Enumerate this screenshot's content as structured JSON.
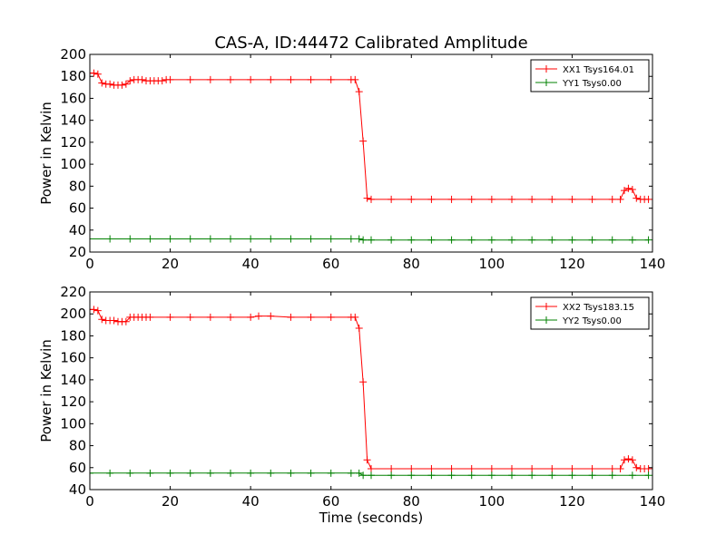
{
  "chart_data": [
    {
      "type": "line",
      "title": "CAS-A, ID:44472 Calibrated Amplitude",
      "xlabel": "",
      "ylabel": "Power in Kelvin",
      "xlim": [
        0,
        140
      ],
      "ylim": [
        20,
        200
      ],
      "xticks": [
        0,
        20,
        40,
        60,
        80,
        100,
        120,
        140
      ],
      "yticks": [
        20,
        40,
        60,
        80,
        100,
        120,
        140,
        160,
        180,
        200
      ],
      "grid": false,
      "legend_position": "top-right",
      "series": [
        {
          "name": "XX1 Tsys164.01",
          "color": "#ff0000",
          "x": [
            0,
            1,
            2,
            3,
            4,
            5,
            6,
            7,
            8,
            9,
            10,
            11,
            12,
            13,
            14,
            15,
            16,
            17,
            18,
            19,
            20,
            25,
            30,
            35,
            40,
            45,
            50,
            55,
            60,
            65,
            66,
            67,
            68,
            69,
            70,
            75,
            80,
            85,
            90,
            95,
            100,
            105,
            110,
            115,
            120,
            125,
            130,
            132,
            133,
            134,
            135,
            136,
            137,
            138,
            139
          ],
          "y": [
            183,
            183,
            182,
            174,
            173,
            173,
            172,
            172,
            172,
            173,
            176,
            177,
            177,
            177,
            176,
            176,
            176,
            176,
            176,
            177,
            177,
            177,
            177,
            177,
            177,
            177,
            177,
            177,
            177,
            177,
            177,
            166,
            121,
            69,
            68,
            68,
            68,
            68,
            68,
            68,
            68,
            68,
            68,
            68,
            68,
            68,
            68,
            68,
            76,
            78,
            77,
            69,
            68,
            68,
            68
          ]
        },
        {
          "name": "YY1 Tsys0.00",
          "color": "#008000",
          "x": [
            0,
            5,
            10,
            15,
            20,
            25,
            30,
            35,
            40,
            45,
            50,
            55,
            60,
            65,
            67,
            68,
            70,
            75,
            80,
            85,
            90,
            95,
            100,
            105,
            110,
            115,
            120,
            125,
            130,
            135,
            139
          ],
          "y": [
            32,
            32,
            32,
            32,
            32,
            32,
            32,
            32,
            32,
            32,
            32,
            32,
            32,
            32,
            32,
            31,
            31,
            31,
            31,
            31,
            31,
            31,
            31,
            31,
            31,
            31,
            31,
            31,
            31,
            31,
            31
          ]
        }
      ]
    },
    {
      "type": "line",
      "title": "",
      "xlabel": "Time (seconds)",
      "ylabel": "Power in Kelvin",
      "xlim": [
        0,
        140
      ],
      "ylim": [
        40,
        220
      ],
      "xticks": [
        0,
        20,
        40,
        60,
        80,
        100,
        120,
        140
      ],
      "yticks": [
        40,
        60,
        80,
        100,
        120,
        140,
        160,
        180,
        200,
        220
      ],
      "grid": false,
      "legend_position": "top-right",
      "series": [
        {
          "name": "XX2 Tsys183.15",
          "color": "#ff0000",
          "x": [
            0,
            1,
            2,
            3,
            4,
            5,
            6,
            7,
            8,
            9,
            10,
            11,
            12,
            13,
            14,
            15,
            20,
            25,
            30,
            35,
            40,
            42,
            45,
            50,
            55,
            60,
            65,
            66,
            67,
            68,
            69,
            70,
            75,
            80,
            85,
            90,
            95,
            100,
            105,
            110,
            115,
            120,
            125,
            130,
            132,
            133,
            134,
            135,
            136,
            137,
            138,
            139
          ],
          "y": [
            204,
            204,
            203,
            195,
            194,
            194,
            194,
            193,
            193,
            193,
            197,
            197,
            197,
            197,
            197,
            197,
            197,
            197,
            197,
            197,
            197,
            198,
            198,
            197,
            197,
            197,
            197,
            197,
            187,
            138,
            67,
            59,
            59,
            59,
            59,
            59,
            59,
            59,
            59,
            59,
            59,
            59,
            59,
            59,
            59,
            67,
            68,
            67,
            60,
            59,
            59,
            59
          ]
        },
        {
          "name": "YY2 Tsys0.00",
          "color": "#008000",
          "x": [
            0,
            5,
            10,
            15,
            20,
            25,
            30,
            35,
            40,
            45,
            50,
            55,
            60,
            65,
            67,
            68,
            70,
            75,
            80,
            85,
            90,
            95,
            100,
            105,
            110,
            115,
            120,
            125,
            130,
            135,
            139
          ],
          "y": [
            55,
            55,
            55,
            55,
            55,
            55,
            55,
            55,
            55,
            55,
            55,
            55,
            55,
            55,
            55,
            53,
            53,
            53,
            53,
            53,
            53,
            53,
            53,
            53,
            53,
            53,
            53,
            53,
            53,
            53,
            53
          ]
        }
      ]
    }
  ]
}
